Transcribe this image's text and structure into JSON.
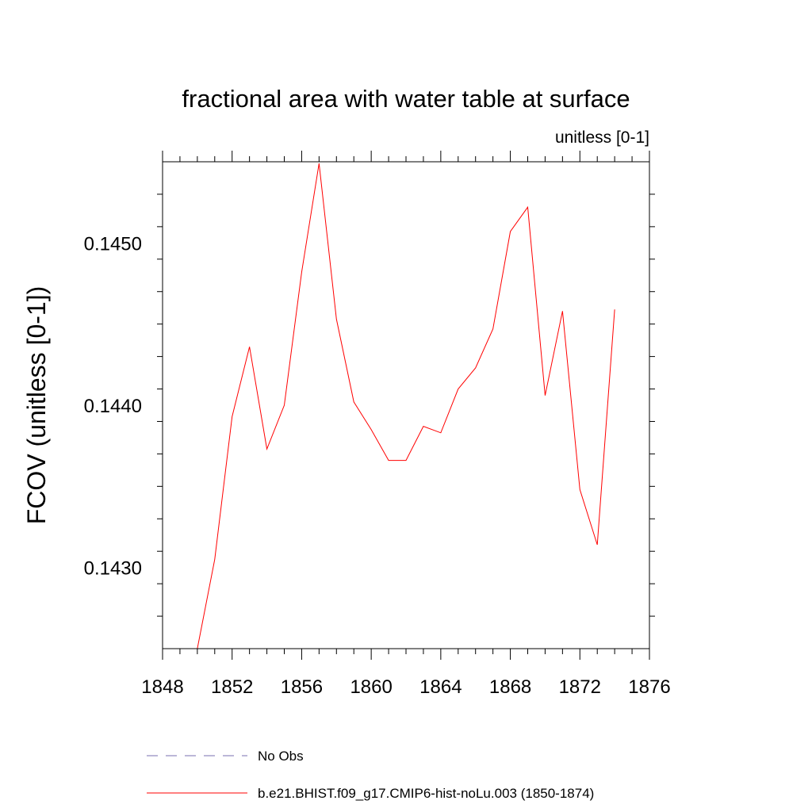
{
  "chart_data": {
    "type": "line",
    "title": "fractional area with water table at surface",
    "subtitle": "unitless [0-1]",
    "xlabel": "",
    "ylabel": "FCOV  (unitless [0-1])",
    "xlim": [
      1848,
      1876
    ],
    "ylim": [
      0.1425,
      0.1455
    ],
    "x_ticks": [
      1848,
      1852,
      1856,
      1860,
      1864,
      1868,
      1872,
      1876
    ],
    "x_tick_labels": [
      "1848",
      "1852",
      "1856",
      "1860",
      "1864",
      "1868",
      "1872",
      "1876"
    ],
    "y_ticks": [
      0.143,
      0.144,
      0.145
    ],
    "y_tick_labels": [
      "0.1430",
      "0.1440",
      "0.1450"
    ],
    "grid": false,
    "legend_position": "bottom",
    "series": [
      {
        "name": "No Obs",
        "color": "#7a6fb0",
        "dash": "dashed",
        "x": [],
        "values": []
      },
      {
        "name": "b.e21.BHIST.f09_g17.CMIP6-hist-noLu.003 (1850-1874)",
        "color": "#ff0000",
        "dash": "solid",
        "x": [
          1850,
          1851,
          1852,
          1853,
          1854,
          1855,
          1856,
          1857,
          1858,
          1859,
          1860,
          1861,
          1862,
          1863,
          1864,
          1865,
          1866,
          1867,
          1868,
          1869,
          1870,
          1871,
          1872,
          1873,
          1874
        ],
        "values": [
          0.1425,
          0.14305,
          0.14393,
          0.14436,
          0.14373,
          0.144,
          0.14482,
          0.14549,
          0.14453,
          0.14402,
          0.14385,
          0.14366,
          0.14366,
          0.14387,
          0.14383,
          0.1441,
          0.14423,
          0.14447,
          0.14507,
          0.14522,
          0.14406,
          0.14458,
          0.14348,
          0.14314,
          0.14459
        ]
      }
    ]
  }
}
